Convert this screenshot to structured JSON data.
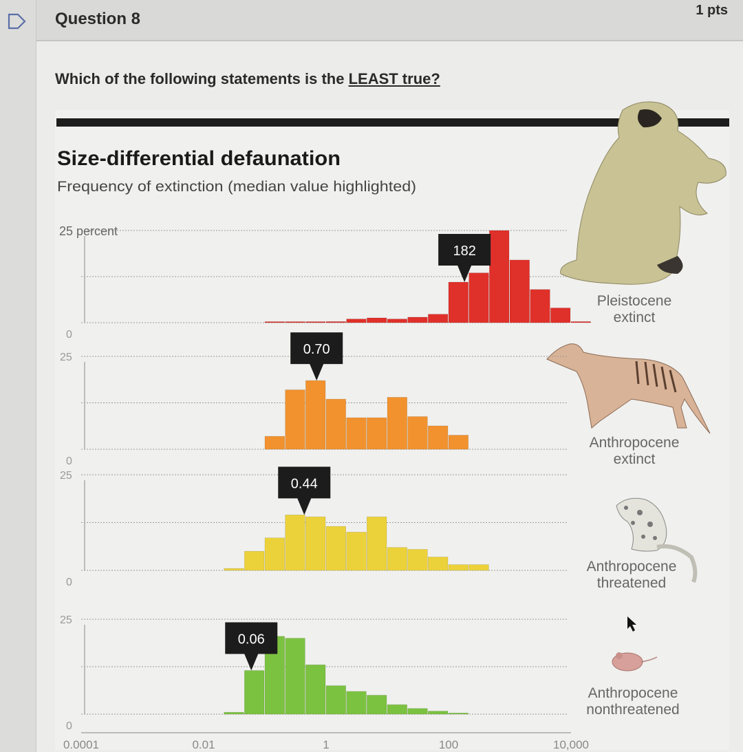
{
  "question": {
    "title": "Question 8",
    "points": "1 pts",
    "prompt_prefix": "Which of the following statements is the ",
    "prompt_emphasis": "LEAST true?"
  },
  "chart_data": {
    "type": "bar",
    "title": "Size-differential defaunation",
    "subtitle": "Frequency of extinction (median value highlighted)",
    "x_scale": "log",
    "x_tick_labels": [
      "0.0001",
      "0.01",
      "1",
      "100",
      "10,000"
    ],
    "y_top_label": "25 percent",
    "y_tick_label_top": "25",
    "y_tick_label_zero": "0",
    "ylim": [
      0,
      25
    ],
    "grid": true,
    "bin_edges": [
      0.001,
      0.0021544,
      0.0046416,
      0.01,
      0.021544,
      0.046416,
      0.1,
      0.21544,
      0.46416,
      1,
      2.1544,
      4.6416,
      10,
      21.544,
      46.416,
      100,
      215.44,
      464.16,
      1000,
      2154.4,
      4641.6,
      10000,
      21544
    ],
    "series": [
      {
        "name": "Pleistocene extinct",
        "label": "Pleistocene\nextinct",
        "median": "182",
        "color": "#e0302a",
        "values": [
          0,
          0,
          0,
          0.3,
          1.0,
          1.3,
          1.0,
          1.5,
          2.3,
          11.0,
          13.5,
          25.0,
          17.0,
          9.0,
          4.0,
          0.3
        ],
        "start_index": 6
      },
      {
        "name": "Anthropocene extinct",
        "label": "Anthropocene\nextinct",
        "median": "0.70",
        "color": "#f2922e",
        "values": [
          3.5,
          16.0,
          18.5,
          13.5,
          8.5,
          8.5,
          14.0,
          8.8,
          6.3,
          3.8
        ],
        "start_index": 6
      },
      {
        "name": "Anthropocene threatened",
        "label": "Anthropocene\nthreatened",
        "median": "0.44",
        "color": "#ecd23a",
        "values": [
          0.5,
          5.0,
          8.5,
          14.5,
          14.0,
          11.5,
          10.0,
          14.0,
          6.0,
          5.5,
          3.5,
          1.5,
          1.5
        ],
        "start_index": 4
      },
      {
        "name": "Anthropocene nonthreatened",
        "label": "Anthropocene\nnonthreatened",
        "median": "0.06",
        "color": "#7cc241",
        "values": [
          0.5,
          11.5,
          20.5,
          20.0,
          13.0,
          7.5,
          6.0,
          5.0,
          2.5,
          1.5,
          0.8,
          0.3
        ],
        "start_index": 4
      }
    ]
  },
  "icons": {
    "flag": "flag-outline-icon",
    "cursor": "mouse-pointer-icon",
    "sloth": "ground-sloth-illustration",
    "thylacine": "thylacine-illustration",
    "leopard": "clouded-leopard-illustration",
    "mouse": "mouse-illustration"
  }
}
